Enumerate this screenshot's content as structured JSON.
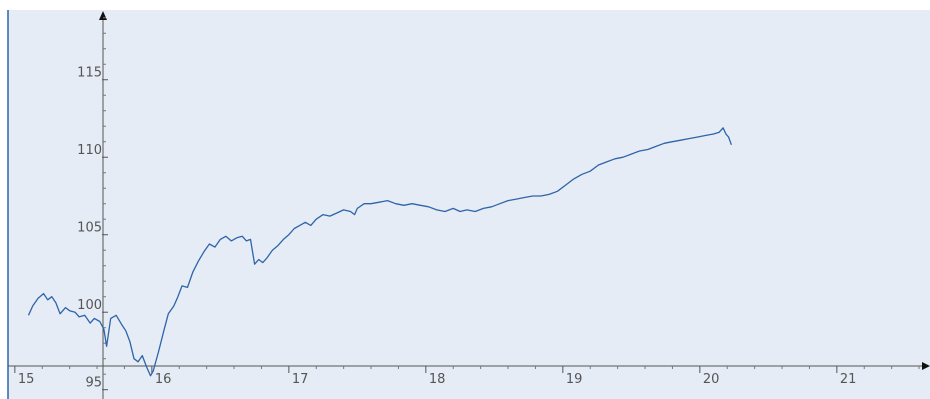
{
  "chart_data": {
    "type": "line",
    "title": "",
    "xlabel": "",
    "ylabel": "",
    "xlim": [
      14.95,
      21.68
    ],
    "ylim": [
      94.4,
      119.5
    ],
    "grid": false,
    "x_ticks": [
      {
        "value": 15,
        "label": "15"
      },
      {
        "value": 16,
        "label": "16"
      },
      {
        "value": 17,
        "label": "17"
      },
      {
        "value": 18,
        "label": "18"
      },
      {
        "value": 19,
        "label": "19"
      },
      {
        "value": 20,
        "label": "20"
      },
      {
        "value": 21,
        "label": "21"
      }
    ],
    "y_ticks": [
      {
        "value": 95,
        "label": "95"
      },
      {
        "value": 100,
        "label": "100"
      },
      {
        "value": 105,
        "label": "105"
      },
      {
        "value": 110,
        "label": "110"
      },
      {
        "value": 115,
        "label": "115"
      }
    ],
    "series": [
      {
        "color": "#2e64a8",
        "points": [
          [
            15.1,
            99.8
          ],
          [
            15.13,
            100.4
          ],
          [
            15.17,
            100.9
          ],
          [
            15.21,
            101.2
          ],
          [
            15.24,
            100.8
          ],
          [
            15.27,
            101.0
          ],
          [
            15.3,
            100.6
          ],
          [
            15.33,
            99.9
          ],
          [
            15.37,
            100.3
          ],
          [
            15.4,
            100.1
          ],
          [
            15.44,
            100.0
          ],
          [
            15.47,
            99.7
          ],
          [
            15.51,
            99.8
          ],
          [
            15.55,
            99.3
          ],
          [
            15.58,
            99.6
          ],
          [
            15.62,
            99.4
          ],
          [
            15.65,
            98.9
          ],
          [
            15.67,
            97.8
          ],
          [
            15.7,
            99.6
          ],
          [
            15.74,
            99.8
          ],
          [
            15.78,
            99.2
          ],
          [
            15.81,
            98.8
          ],
          [
            15.84,
            98.1
          ],
          [
            15.87,
            97.0
          ],
          [
            15.9,
            96.8
          ],
          [
            15.93,
            97.2
          ],
          [
            15.96,
            96.5
          ],
          [
            15.99,
            95.9
          ],
          [
            16.01,
            96.2
          ],
          [
            16.05,
            97.5
          ],
          [
            16.09,
            98.9
          ],
          [
            16.12,
            99.9
          ],
          [
            16.16,
            100.4
          ],
          [
            16.19,
            101.0
          ],
          [
            16.22,
            101.7
          ],
          [
            16.26,
            101.6
          ],
          [
            16.3,
            102.6
          ],
          [
            16.34,
            103.3
          ],
          [
            16.38,
            103.9
          ],
          [
            16.42,
            104.4
          ],
          [
            16.46,
            104.2
          ],
          [
            16.5,
            104.7
          ],
          [
            16.54,
            104.9
          ],
          [
            16.58,
            104.6
          ],
          [
            16.62,
            104.8
          ],
          [
            16.66,
            104.9
          ],
          [
            16.69,
            104.6
          ],
          [
            16.72,
            104.7
          ],
          [
            16.75,
            103.1
          ],
          [
            16.78,
            103.4
          ],
          [
            16.81,
            103.2
          ],
          [
            16.84,
            103.5
          ],
          [
            16.88,
            104.0
          ],
          [
            16.92,
            104.3
          ],
          [
            16.96,
            104.7
          ],
          [
            17.0,
            105.0
          ],
          [
            17.04,
            105.4
          ],
          [
            17.08,
            105.6
          ],
          [
            17.12,
            105.8
          ],
          [
            17.16,
            105.6
          ],
          [
            17.2,
            106.0
          ],
          [
            17.25,
            106.3
          ],
          [
            17.3,
            106.2
          ],
          [
            17.35,
            106.4
          ],
          [
            17.4,
            106.6
          ],
          [
            17.45,
            106.5
          ],
          [
            17.48,
            106.3
          ],
          [
            17.5,
            106.7
          ],
          [
            17.55,
            107.0
          ],
          [
            17.6,
            107.0
          ],
          [
            17.66,
            107.1
          ],
          [
            17.72,
            107.2
          ],
          [
            17.78,
            107.0
          ],
          [
            17.84,
            106.9
          ],
          [
            17.9,
            107.0
          ],
          [
            17.96,
            106.9
          ],
          [
            18.02,
            106.8
          ],
          [
            18.08,
            106.6
          ],
          [
            18.14,
            106.5
          ],
          [
            18.2,
            106.7
          ],
          [
            18.25,
            106.5
          ],
          [
            18.3,
            106.6
          ],
          [
            18.36,
            106.5
          ],
          [
            18.42,
            106.7
          ],
          [
            18.48,
            106.8
          ],
          [
            18.54,
            107.0
          ],
          [
            18.6,
            107.2
          ],
          [
            18.66,
            107.3
          ],
          [
            18.72,
            107.4
          ],
          [
            18.78,
            107.5
          ],
          [
            18.84,
            107.5
          ],
          [
            18.9,
            107.6
          ],
          [
            18.96,
            107.8
          ],
          [
            19.02,
            108.2
          ],
          [
            19.08,
            108.6
          ],
          [
            19.14,
            108.9
          ],
          [
            19.2,
            109.1
          ],
          [
            19.26,
            109.5
          ],
          [
            19.32,
            109.7
          ],
          [
            19.38,
            109.9
          ],
          [
            19.44,
            110.0
          ],
          [
            19.5,
            110.2
          ],
          [
            19.56,
            110.4
          ],
          [
            19.62,
            110.5
          ],
          [
            19.68,
            110.7
          ],
          [
            19.74,
            110.9
          ],
          [
            19.8,
            111.0
          ],
          [
            19.86,
            111.1
          ],
          [
            19.92,
            111.2
          ],
          [
            19.98,
            111.3
          ],
          [
            20.04,
            111.4
          ],
          [
            20.1,
            111.5
          ],
          [
            20.14,
            111.6
          ],
          [
            20.17,
            111.9
          ],
          [
            20.19,
            111.5
          ],
          [
            20.21,
            111.3
          ],
          [
            20.23,
            110.8
          ]
        ]
      }
    ]
  }
}
